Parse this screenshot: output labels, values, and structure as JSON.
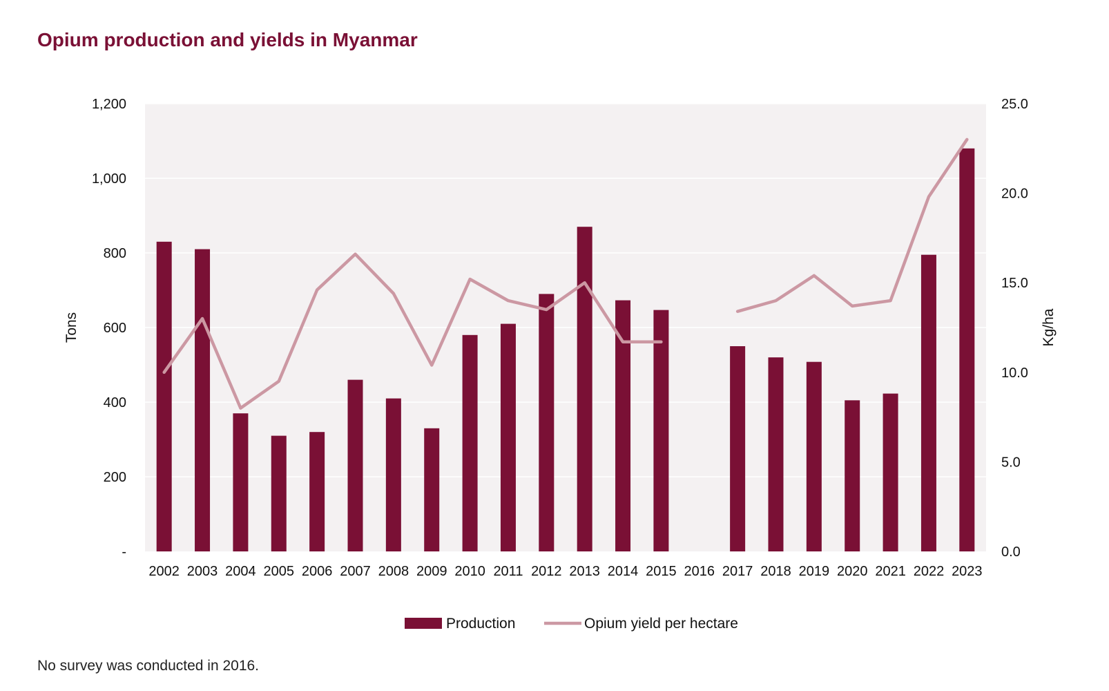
{
  "title": "Opium production and yields in Myanmar",
  "footnote": "No survey was conducted in 2016.",
  "colors": {
    "title": "#7a1035",
    "bar": "#7a1035",
    "line": "#cc98a3",
    "plot_bg": "#f4f1f2",
    "grid": "#ffffff"
  },
  "chart_data": {
    "type": "bar",
    "title": "Opium production and yields in Myanmar",
    "xlabel": "",
    "ylabel": "Tons",
    "y2label": "Kg/ha",
    "ylim": [
      0,
      1200
    ],
    "y2lim": [
      0,
      25
    ],
    "yticks": [
      "-",
      "200",
      "400",
      "600",
      "800",
      "1,000",
      "1,200"
    ],
    "y2ticks": [
      "0.0",
      "5.0",
      "10.0",
      "15.0",
      "20.0",
      "25.0"
    ],
    "categories": [
      "2002",
      "2003",
      "2004",
      "2005",
      "2006",
      "2007",
      "2008",
      "2009",
      "2010",
      "2011",
      "2012",
      "2013",
      "2014",
      "2015",
      "2016",
      "2017",
      "2018",
      "2019",
      "2020",
      "2021",
      "2022",
      "2023"
    ],
    "series": [
      {
        "name": "Production",
        "type": "bar",
        "axis": "left",
        "values": [
          830,
          810,
          370,
          310,
          320,
          460,
          410,
          330,
          580,
          610,
          690,
          870,
          673,
          647,
          null,
          550,
          520,
          508,
          405,
          423,
          795,
          1080
        ]
      },
      {
        "name": "Opium yield per hectare",
        "type": "line",
        "axis": "right",
        "values": [
          10.0,
          13.0,
          8.0,
          9.5,
          14.6,
          16.6,
          14.4,
          10.4,
          15.2,
          14.0,
          13.5,
          15.0,
          11.7,
          11.7,
          null,
          13.4,
          14.0,
          15.4,
          13.7,
          14.0,
          19.8,
          23.0
        ]
      }
    ],
    "legend": [
      "Production",
      "Opium yield per hectare"
    ]
  }
}
